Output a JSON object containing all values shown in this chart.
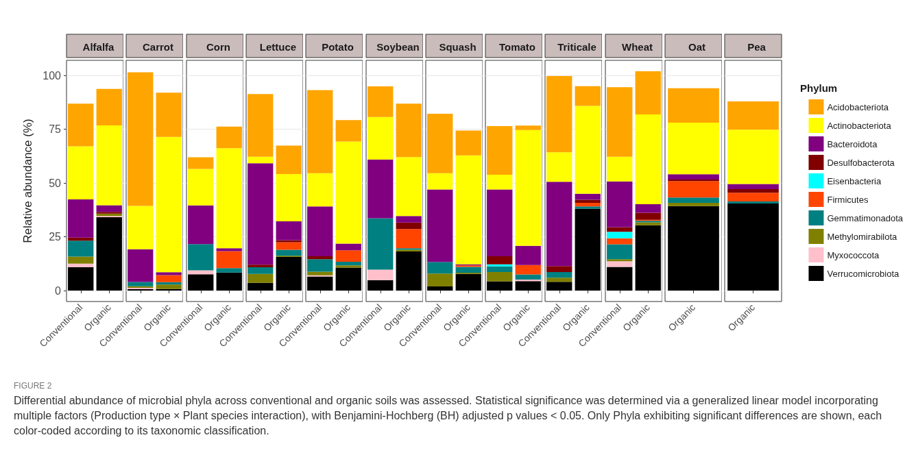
{
  "chart_data": [
    {
      "type": "bar",
      "title": "Alfalfa",
      "ylabel": "Relative abundance (%)",
      "categories": [
        "Conventional",
        "Organic"
      ],
      "stacked": true,
      "ylim": [
        -5.1,
        107.1
      ],
      "yticks": [
        0,
        25,
        50,
        75,
        100
      ],
      "grid": true,
      "series": [
        {
          "color": "#000000",
          "values": [
            10.9,
            34.1
          ]
        },
        {
          "color": "#ffc0cb",
          "values": [
            1.6,
            0.6
          ]
        },
        {
          "color": "#808000",
          "values": [
            3.3,
            1.1
          ]
        },
        {
          "color": "#008080",
          "values": [
            7.4,
            0
          ]
        },
        {
          "color": "#ff4500",
          "values": [
            0,
            0
          ]
        },
        {
          "color": "#00ffff",
          "values": [
            0,
            0
          ]
        },
        {
          "color": "#800000",
          "values": [
            1.4,
            0.8
          ]
        },
        {
          "color": "#800080",
          "values": [
            17.8,
            3.1
          ]
        },
        {
          "color": "#ffff00",
          "values": [
            24.7,
            37.1
          ]
        },
        {
          "color": "#ffa500",
          "values": [
            19.8,
            17.0
          ]
        }
      ]
    },
    {
      "type": "bar",
      "title": "Carrot",
      "categories": [
        "Conventional",
        "Organic"
      ],
      "stacked": true,
      "ylim": [
        -5.1,
        107.1
      ],
      "yticks": [
        0,
        25,
        50,
        75,
        100
      ],
      "grid": true,
      "tick_labels": "x",
      "series": [
        {
          "color": "#000000",
          "values": [
            0.6,
            0.7
          ]
        },
        {
          "color": "#ffc0cb",
          "values": [
            0.7,
            0
          ]
        },
        {
          "color": "#808000",
          "values": [
            0.7,
            2.1
          ]
        },
        {
          "color": "#008080",
          "values": [
            2.0,
            1.1
          ]
        },
        {
          "color": "#ff4500",
          "values": [
            0,
            3.3
          ]
        },
        {
          "color": "#00ffff",
          "values": [
            0,
            0
          ]
        },
        {
          "color": "#800000",
          "values": [
            0,
            0
          ]
        },
        {
          "color": "#800080",
          "values": [
            15.2,
            1.3
          ]
        },
        {
          "color": "#ffff00",
          "values": [
            20.2,
            63.0
          ]
        },
        {
          "color": "#ffa500",
          "values": [
            62.1,
            20.5
          ]
        }
      ]
    },
    {
      "type": "bar",
      "title": "Corn",
      "categories": [
        "Conventional",
        "Organic"
      ],
      "stacked": true,
      "ylim": [
        -5.1,
        107.1
      ],
      "yticks": [
        0,
        25,
        50,
        75,
        100
      ],
      "grid": true,
      "tick_labels": "x",
      "series": [
        {
          "color": "#000000",
          "values": [
            7.6,
            8.4
          ]
        },
        {
          "color": "#ffc0cb",
          "values": [
            1.8,
            0
          ]
        },
        {
          "color": "#808000",
          "values": [
            0,
            0
          ]
        },
        {
          "color": "#008080",
          "values": [
            12.2,
            2.0
          ]
        },
        {
          "color": "#ff4500",
          "values": [
            0,
            7.9
          ]
        },
        {
          "color": "#00ffff",
          "values": [
            0,
            0
          ]
        },
        {
          "color": "#800000",
          "values": [
            0,
            0
          ]
        },
        {
          "color": "#800080",
          "values": [
            18.0,
            1.4
          ]
        },
        {
          "color": "#ffff00",
          "values": [
            17.0,
            46.5
          ]
        },
        {
          "color": "#ffa500",
          "values": [
            5.4,
            10.1
          ]
        }
      ]
    },
    {
      "type": "bar",
      "title": "Lettuce",
      "categories": [
        "Conventional",
        "Organic"
      ],
      "stacked": true,
      "ylim": [
        -5.1,
        107.1
      ],
      "yticks": [
        0,
        25,
        50,
        75,
        100
      ],
      "grid": true,
      "tick_labels": "x",
      "series": [
        {
          "color": "#000000",
          "values": [
            3.6,
            15.6
          ]
        },
        {
          "color": "#ffc0cb",
          "values": [
            0,
            0
          ]
        },
        {
          "color": "#808000",
          "values": [
            4.1,
            0.6
          ]
        },
        {
          "color": "#008080",
          "values": [
            3.1,
            2.8
          ]
        },
        {
          "color": "#ff4500",
          "values": [
            0,
            3.5
          ]
        },
        {
          "color": "#00ffff",
          "values": [
            0,
            0
          ]
        },
        {
          "color": "#800000",
          "values": [
            1.2,
            0.9
          ]
        },
        {
          "color": "#800080",
          "values": [
            47.2,
            8.8
          ]
        },
        {
          "color": "#ffff00",
          "values": [
            3.0,
            22.0
          ]
        },
        {
          "color": "#ffa500",
          "values": [
            29.2,
            13.2
          ]
        }
      ]
    },
    {
      "type": "bar",
      "title": "Potato",
      "categories": [
        "Conventional",
        "Organic"
      ],
      "stacked": true,
      "ylim": [
        -5.1,
        107.1
      ],
      "yticks": [
        0,
        25,
        50,
        75,
        100
      ],
      "grid": true,
      "tick_labels": "x",
      "series": [
        {
          "color": "#000000",
          "values": [
            6.5,
            10.7
          ]
        },
        {
          "color": "#ffc0cb",
          "values": [
            0.6,
            0
          ]
        },
        {
          "color": "#808000",
          "values": [
            1.7,
            1.0
          ]
        },
        {
          "color": "#008080",
          "values": [
            5.8,
            1.7
          ]
        },
        {
          "color": "#ff4500",
          "values": [
            0,
            5.3
          ]
        },
        {
          "color": "#00ffff",
          "values": [
            0,
            0
          ]
        },
        {
          "color": "#800000",
          "values": [
            1.3,
            0
          ]
        },
        {
          "color": "#800080",
          "values": [
            23.2,
            3.1
          ]
        },
        {
          "color": "#ffff00",
          "values": [
            15.5,
            47.5
          ]
        },
        {
          "color": "#ffa500",
          "values": [
            38.6,
            10.0
          ]
        }
      ]
    },
    {
      "type": "bar",
      "title": "Soybean",
      "categories": [
        "Conventional",
        "Organic"
      ],
      "stacked": true,
      "ylim": [
        -5.1,
        107.1
      ],
      "yticks": [
        0,
        25,
        50,
        75,
        100
      ],
      "grid": true,
      "tick_labels": "x",
      "series": [
        {
          "color": "#000000",
          "values": [
            4.9,
            18.2
          ]
        },
        {
          "color": "#ffc0cb",
          "values": [
            4.8,
            0
          ]
        },
        {
          "color": "#808000",
          "values": [
            0,
            0.8
          ]
        },
        {
          "color": "#008080",
          "values": [
            23.9,
            0.7
          ]
        },
        {
          "color": "#ff4500",
          "values": [
            0,
            8.9
          ]
        },
        {
          "color": "#00ffff",
          "values": [
            0,
            0
          ]
        },
        {
          "color": "#800000",
          "values": [
            0,
            3.0
          ]
        },
        {
          "color": "#800080",
          "values": [
            27.4,
            3.1
          ]
        },
        {
          "color": "#ffff00",
          "values": [
            19.7,
            27.4
          ]
        },
        {
          "color": "#ffa500",
          "values": [
            14.3,
            24.8
          ]
        }
      ]
    },
    {
      "type": "bar",
      "title": "Squash",
      "categories": [
        "Conventional",
        "Organic"
      ],
      "stacked": true,
      "ylim": [
        -5.1,
        107.1
      ],
      "yticks": [
        0,
        25,
        50,
        75,
        100
      ],
      "grid": true,
      "tick_labels": "x",
      "series": [
        {
          "color": "#000000",
          "values": [
            1.9,
            7.7
          ]
        },
        {
          "color": "#ffc0cb",
          "values": [
            0,
            0
          ]
        },
        {
          "color": "#808000",
          "values": [
            6.0,
            0.6
          ]
        },
        {
          "color": "#008080",
          "values": [
            5.4,
            2.7
          ]
        },
        {
          "color": "#ff4500",
          "values": [
            0,
            0.7
          ]
        },
        {
          "color": "#00ffff",
          "values": [
            0,
            0
          ]
        },
        {
          "color": "#800000",
          "values": [
            0,
            0
          ]
        },
        {
          "color": "#800080",
          "values": [
            33.7,
            0.5
          ]
        },
        {
          "color": "#ffff00",
          "values": [
            7.6,
            50.7
          ]
        },
        {
          "color": "#ffa500",
          "values": [
            27.6,
            11.5
          ]
        }
      ]
    },
    {
      "type": "bar",
      "title": "Tomato",
      "categories": [
        "Conventional",
        "Organic"
      ],
      "stacked": true,
      "ylim": [
        -5.1,
        107.1
      ],
      "yticks": [
        0,
        25,
        50,
        75,
        100
      ],
      "grid": true,
      "tick_labels": "x",
      "series": [
        {
          "color": "#000000",
          "values": [
            4.3,
            4.4
          ]
        },
        {
          "color": "#ffc0cb",
          "values": [
            0,
            0.7
          ]
        },
        {
          "color": "#808000",
          "values": [
            4.3,
            0
          ]
        },
        {
          "color": "#008080",
          "values": [
            2.6,
            2.4
          ]
        },
        {
          "color": "#ff4500",
          "values": [
            0,
            4.4
          ]
        },
        {
          "color": "#00ffff",
          "values": [
            1.0,
            0
          ]
        },
        {
          "color": "#800000",
          "values": [
            3.7,
            0
          ]
        },
        {
          "color": "#800080",
          "values": [
            31.1,
            8.9
          ]
        },
        {
          "color": "#ffff00",
          "values": [
            6.9,
            53.9
          ]
        },
        {
          "color": "#ffa500",
          "values": [
            22.6,
            2.0
          ]
        }
      ]
    },
    {
      "type": "bar",
      "title": "Triticale",
      "categories": [
        "Conventional",
        "Organic"
      ],
      "stacked": true,
      "ylim": [
        -5.1,
        107.1
      ],
      "yticks": [
        0,
        25,
        50,
        75,
        100
      ],
      "grid": true,
      "tick_labels": "x",
      "series": [
        {
          "color": "#000000",
          "values": [
            4.1,
            38.1
          ]
        },
        {
          "color": "#ffc0cb",
          "values": [
            0,
            0
          ]
        },
        {
          "color": "#808000",
          "values": [
            1.9,
            0
          ]
        },
        {
          "color": "#008080",
          "values": [
            2.6,
            1.0
          ]
        },
        {
          "color": "#ff4500",
          "values": [
            0,
            1.7
          ]
        },
        {
          "color": "#00ffff",
          "values": [
            0,
            0
          ]
        },
        {
          "color": "#800000",
          "values": [
            2.8,
            1.4
          ]
        },
        {
          "color": "#800080",
          "values": [
            39.2,
            2.8
          ]
        },
        {
          "color": "#ffff00",
          "values": [
            13.7,
            40.9
          ]
        },
        {
          "color": "#ffa500",
          "values": [
            35.5,
            9.2
          ]
        }
      ]
    },
    {
      "type": "bar",
      "title": "Wheat",
      "categories": [
        "Conventional",
        "Organic"
      ],
      "stacked": true,
      "ylim": [
        -5.1,
        107.1
      ],
      "yticks": [
        0,
        25,
        50,
        75,
        100
      ],
      "grid": true,
      "tick_labels": "x",
      "series": [
        {
          "color": "#000000",
          "values": [
            11.0,
            30.4
          ]
        },
        {
          "color": "#ffc0cb",
          "values": [
            2.6,
            0
          ]
        },
        {
          "color": "#808000",
          "values": [
            1.0,
            1.3
          ]
        },
        {
          "color": "#008080",
          "values": [
            6.9,
            0.7
          ]
        },
        {
          "color": "#ff4500",
          "values": [
            2.8,
            0.5
          ]
        },
        {
          "color": "#00ffff",
          "values": [
            3.0,
            0
          ]
        },
        {
          "color": "#800000",
          "values": [
            2.2,
            3.3
          ]
        },
        {
          "color": "#800080",
          "values": [
            21.3,
            4.0
          ]
        },
        {
          "color": "#ffff00",
          "values": [
            11.4,
            41.7
          ]
        },
        {
          "color": "#ffa500",
          "values": [
            32.4,
            20.1
          ]
        }
      ]
    },
    {
      "type": "bar",
      "title": "Oat",
      "categories": [
        "Organic"
      ],
      "stacked": true,
      "ylim": [
        -5.1,
        107.1
      ],
      "yticks": [
        0,
        25,
        50,
        75,
        100
      ],
      "grid": true,
      "tick_labels": "x",
      "series": [
        {
          "color": "#000000",
          "values": [
            39.3
          ]
        },
        {
          "color": "#ffc0cb",
          "values": [
            0
          ]
        },
        {
          "color": "#808000",
          "values": [
            1.5
          ]
        },
        {
          "color": "#008080",
          "values": [
            2.5
          ]
        },
        {
          "color": "#ff4500",
          "values": [
            7.6
          ]
        },
        {
          "color": "#00ffff",
          "values": [
            0
          ]
        },
        {
          "color": "#800000",
          "values": [
            0.7
          ]
        },
        {
          "color": "#800080",
          "values": [
            2.5
          ]
        },
        {
          "color": "#ffff00",
          "values": [
            24.0
          ]
        },
        {
          "color": "#ffa500",
          "values": [
            16.0
          ]
        }
      ]
    },
    {
      "type": "bar",
      "title": "Pea",
      "categories": [
        "Organic"
      ],
      "stacked": true,
      "ylim": [
        -5.1,
        107.1
      ],
      "yticks": [
        0,
        25,
        50,
        75,
        100
      ],
      "grid": true,
      "legend": "right",
      "legend_title": "Phylum",
      "tick_labels": "x",
      "annotations": [
        "FIGURE 2",
        "Differential abundance of microbial phyla across conventional and organic soils was assessed. Statistical significance was determined via a generalized linear model incorporating multiple factors (Production type × Plant species interaction), with Benjamini-Hochberg (BH) adjusted p values < 0.05. Only Phyla exhibiting significant differences are shown, each color-coded according to its taxonomic classification."
      ],
      "series": [
        {
          "name": "Verrucomicrobiota",
          "color": "#000000",
          "values": [
            40.5
          ]
        },
        {
          "name": "Myxococcota",
          "color": "#ffc0cb",
          "values": [
            0
          ]
        },
        {
          "name": "Methylomirabilota",
          "color": "#808000",
          "values": [
            0
          ]
        },
        {
          "name": "Gemmatimonadota",
          "color": "#008080",
          "values": [
            0.9
          ]
        },
        {
          "name": "Firmicutes",
          "color": "#ff4500",
          "values": [
            4.1
          ]
        },
        {
          "name": "Eisenbacteria",
          "color": "#00ffff",
          "values": [
            0
          ]
        },
        {
          "name": "Desulfobacterota",
          "color": "#800000",
          "values": [
            1.7
          ]
        },
        {
          "name": "Bacteroidota",
          "color": "#800080",
          "values": [
            2.4
          ]
        },
        {
          "name": "Actinobacteriota",
          "color": "#ffff00",
          "values": [
            25.2
          ]
        },
        {
          "name": "Acidobacteriota",
          "color": "#ffa500",
          "values": [
            13.2
          ]
        }
      ]
    }
  ]
}
